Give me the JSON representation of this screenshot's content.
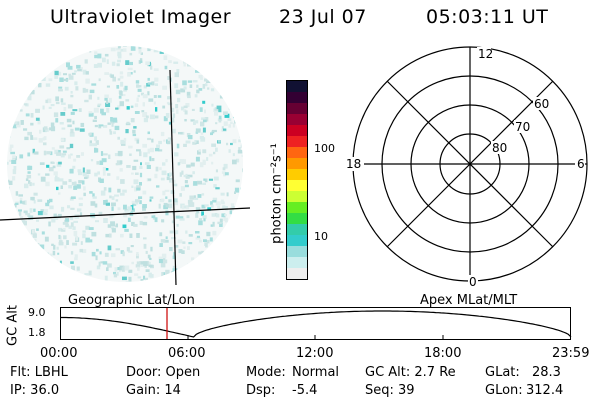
{
  "header": {
    "title": "Ultraviolet Imager",
    "date": "23 Jul 07",
    "time": "05:03:11 UT"
  },
  "colorbar": {
    "label": "photon cm⁻²s⁻¹",
    "ticks": [
      "100",
      "10"
    ],
    "colors": [
      "#111133",
      "#330033",
      "#660033",
      "#990033",
      "#cc0022",
      "#ee2222",
      "#ff6611",
      "#ff9900",
      "#ffcc00",
      "#ffff33",
      "#ccff33",
      "#66ee22",
      "#33dd44",
      "#33ccaa",
      "#33cccc",
      "#99dddd",
      "#cceeee",
      "#eeeeee"
    ]
  },
  "polar": {
    "clock_labels": {
      "top": "12",
      "left": "18",
      "right": "6",
      "bottom": "0"
    },
    "lat_labels": [
      "60",
      "70",
      "80"
    ]
  },
  "timeline": {
    "left_title": "Geographic Lat/Lon",
    "right_title": "Apex MLat/MLT",
    "ylabel": "GC Alt",
    "y_ticks": [
      "9.0",
      "1.8"
    ],
    "x_ticks": [
      "00:00",
      "06:00",
      "12:00",
      "18:00",
      "23:59"
    ],
    "marker_color": "#cc0000"
  },
  "status": {
    "filter": "Flt: LBHL",
    "ip": "IP: 36.0",
    "door": "Door: Open",
    "gain": "Gain: 14",
    "mode_label": "Mode:",
    "mode_value": "Normal",
    "dsp_label": "Dsp:",
    "dsp_value": "-5.4",
    "gc_alt": "GC Alt: 2.7 Re",
    "seq": "Seq: 39",
    "glat_label": "GLat:",
    "glat_value": "28.3",
    "glon_label": "GLon:",
    "glon_value": "312.4"
  }
}
